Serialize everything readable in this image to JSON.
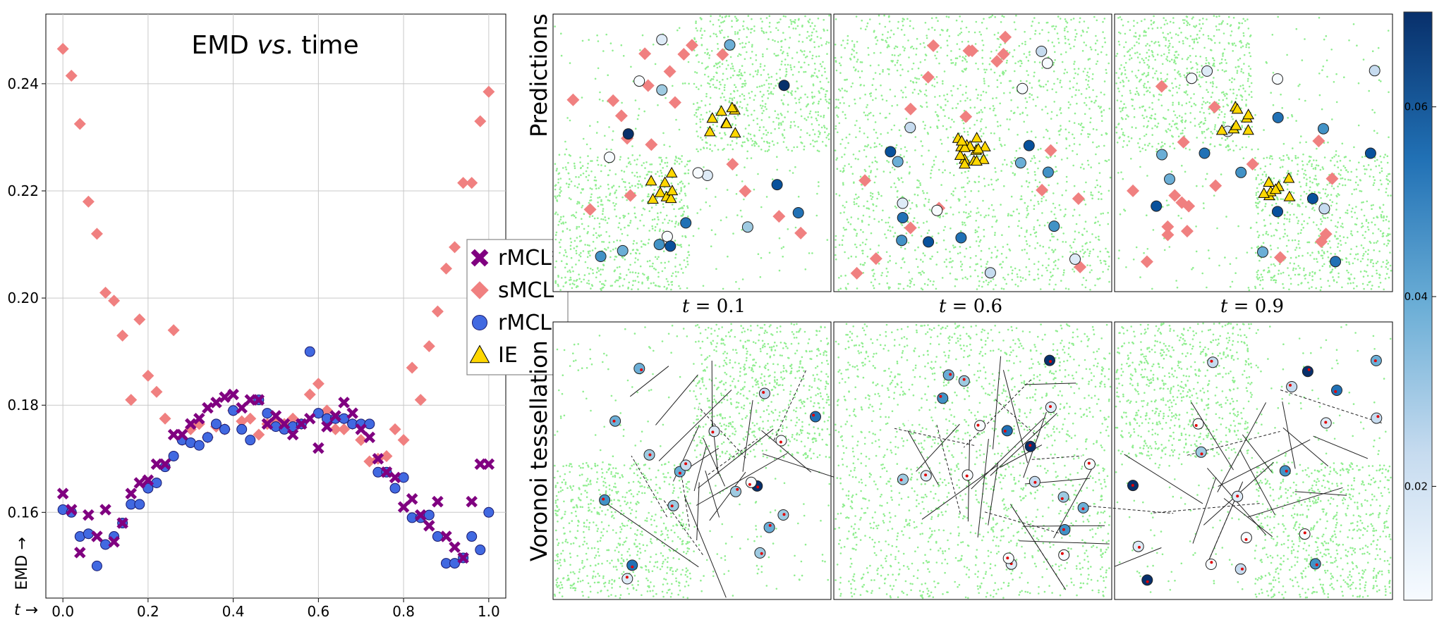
{
  "colors": {
    "rmcl_star": "#800080",
    "smcl": "#f08080",
    "rmcl": "#4169e1",
    "ie": "#ffd700",
    "samples": "#90ee90",
    "voronoi_dot": "#e00000",
    "cmap_light": "#f7fbff",
    "cmap_dark": "#08306b"
  },
  "emd_plot": {
    "title_prefix": "EMD ",
    "title_italic": "vs",
    "title_suffix": ". time",
    "ylabel": "EMD →",
    "xlabel": "t →",
    "grid": true,
    "legend_placement": "right"
  },
  "chart_data": {
    "type": "scatter",
    "title": "EMD vs. time",
    "xlabel": "t →",
    "ylabel": "EMD →",
    "xlim": [
      -0.04,
      1.04
    ],
    "ylim": [
      0.144,
      0.253
    ],
    "xticks": [
      "0.0",
      "0.2",
      "0.4",
      "0.6",
      "0.8",
      "1.0"
    ],
    "yticks": [
      "0.16",
      "0.18",
      "0.20",
      "0.22",
      "0.24"
    ],
    "series": [
      {
        "name": "rMCL*",
        "marker": "x",
        "color": "#800080",
        "x": [
          0.0,
          0.02,
          0.04,
          0.06,
          0.08,
          0.1,
          0.12,
          0.14,
          0.16,
          0.18,
          0.2,
          0.22,
          0.24,
          0.26,
          0.28,
          0.3,
          0.32,
          0.34,
          0.36,
          0.38,
          0.4,
          0.42,
          0.44,
          0.46,
          0.48,
          0.5,
          0.52,
          0.54,
          0.56,
          0.58,
          0.6,
          0.62,
          0.64,
          0.66,
          0.68,
          0.7,
          0.72,
          0.74,
          0.76,
          0.78,
          0.8,
          0.82,
          0.84,
          0.86,
          0.88,
          0.9,
          0.92,
          0.94,
          0.96,
          0.98,
          1.0
        ],
        "y": [
          0.1635,
          0.1605,
          0.1525,
          0.1595,
          0.1555,
          0.1605,
          0.1545,
          0.158,
          0.1635,
          0.1655,
          0.166,
          0.169,
          0.169,
          0.1745,
          0.1745,
          0.1765,
          0.1775,
          0.1795,
          0.1805,
          0.1815,
          0.182,
          0.1795,
          0.181,
          0.181,
          0.1765,
          0.178,
          0.1765,
          0.1745,
          0.1765,
          0.1775,
          0.172,
          0.176,
          0.178,
          0.1805,
          0.1785,
          0.1755,
          0.174,
          0.17,
          0.1675,
          0.1665,
          0.161,
          0.1625,
          0.1595,
          0.1575,
          0.162,
          0.1555,
          0.1535,
          0.1515,
          0.162,
          0.169,
          0.169
        ]
      },
      {
        "name": "sMCL",
        "marker": "D",
        "color": "#f08080",
        "x": [
          0.0,
          0.02,
          0.04,
          0.06,
          0.08,
          0.1,
          0.12,
          0.14,
          0.16,
          0.18,
          0.2,
          0.22,
          0.24,
          0.26,
          0.28,
          0.3,
          0.32,
          0.34,
          0.36,
          0.38,
          0.4,
          0.42,
          0.44,
          0.46,
          0.48,
          0.5,
          0.52,
          0.54,
          0.56,
          0.58,
          0.6,
          0.62,
          0.64,
          0.66,
          0.68,
          0.7,
          0.72,
          0.74,
          0.76,
          0.78,
          0.8,
          0.82,
          0.84,
          0.86,
          0.88,
          0.9,
          0.92,
          0.94,
          0.96,
          0.98,
          1.0
        ],
        "y": [
          0.2465,
          0.2415,
          0.2325,
          0.218,
          0.212,
          0.201,
          0.1995,
          0.193,
          0.181,
          0.196,
          0.1855,
          0.1825,
          0.1775,
          0.194,
          0.1735,
          0.1755,
          0.1765,
          0.174,
          0.176,
          0.1755,
          0.179,
          0.177,
          0.1775,
          0.1745,
          0.1765,
          0.177,
          0.1765,
          0.1775,
          0.1765,
          0.182,
          0.184,
          0.179,
          0.1755,
          0.1755,
          0.1765,
          0.1735,
          0.1695,
          0.17,
          0.1705,
          0.1755,
          0.1735,
          0.187,
          0.181,
          0.191,
          0.1975,
          0.2055,
          0.2095,
          0.2215,
          0.2215,
          0.233,
          0.2385
        ]
      },
      {
        "name": "rMCL",
        "marker": "o",
        "color": "#4169e1",
        "x": [
          0.0,
          0.02,
          0.04,
          0.06,
          0.08,
          0.1,
          0.12,
          0.14,
          0.16,
          0.18,
          0.2,
          0.22,
          0.24,
          0.26,
          0.28,
          0.3,
          0.32,
          0.34,
          0.36,
          0.38,
          0.4,
          0.42,
          0.44,
          0.46,
          0.48,
          0.5,
          0.52,
          0.54,
          0.56,
          0.58,
          0.6,
          0.62,
          0.64,
          0.66,
          0.68,
          0.7,
          0.72,
          0.74,
          0.76,
          0.78,
          0.8,
          0.82,
          0.84,
          0.86,
          0.88,
          0.9,
          0.92,
          0.94,
          0.96,
          0.98,
          1.0
        ],
        "y": [
          0.1605,
          0.16,
          0.1555,
          0.156,
          0.15,
          0.154,
          0.1555,
          0.158,
          0.1615,
          0.1615,
          0.1645,
          0.1655,
          0.1685,
          0.1705,
          0.1735,
          0.173,
          0.1725,
          0.174,
          0.1765,
          0.1755,
          0.179,
          0.1755,
          0.1735,
          0.181,
          0.1785,
          0.176,
          0.1755,
          0.176,
          0.1765,
          0.19,
          0.1785,
          0.1775,
          0.1775,
          0.1775,
          0.1765,
          0.1765,
          0.1765,
          0.1675,
          0.1675,
          0.1645,
          0.1665,
          0.159,
          0.159,
          0.1595,
          0.1555,
          0.1505,
          0.1505,
          0.1515,
          0.1555,
          0.153,
          0.16
        ]
      },
      {
        "name": "IE",
        "marker": "^",
        "color": "#ffd700",
        "x": [],
        "y": []
      }
    ]
  },
  "panels": {
    "row_label_top": "Predictions",
    "row_label_bottom": "Voronoi tessellation",
    "time_labels": [
      {
        "prefix": "t",
        "rest": " = 0.1"
      },
      {
        "prefix": "t",
        "rest": " = 0.6"
      },
      {
        "prefix": "t",
        "rest": " = 0.9"
      }
    ],
    "colorbar_ticks": [
      "0.06",
      "0.04",
      "0.02"
    ],
    "colorbar_values": [
      0.06,
      0.04,
      0.02
    ],
    "colorbar_range": [
      0.008,
      0.07
    ]
  }
}
